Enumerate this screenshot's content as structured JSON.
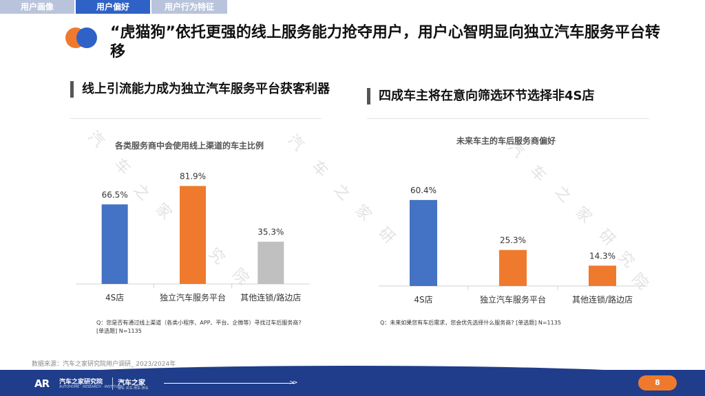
{
  "tabs": [
    {
      "label": "用户画像",
      "active": false
    },
    {
      "label": "用户偏好",
      "active": true
    },
    {
      "label": "用户行为特征",
      "active": false
    }
  ],
  "main_title": "“虎猫狗”依托更强的线上服务能力抢夺用户，用户心智明显向独立汽车服务平台转移",
  "left": {
    "heading": "线上引流能力成为独立汽车服务平台获客利器",
    "panel_title": "各类服务商中会使用线上渠道的车主比例",
    "note_line1": "Q：您是否有通过线上渠道（各类小程序、APP、平台、企微等）寻找过车后服务商?",
    "note_line2": "[单选题] N=1135"
  },
  "right": {
    "heading": "四成车主将在意向筛选环节选择非4S店",
    "panel_title": "未来车主的车后服务商偏好",
    "note_line1": "Q：未来如果您有车后需求，您会优先选择什么服务商?  [单选题] N=1135"
  },
  "chart_data": [
    {
      "type": "bar",
      "title": "各类服务商中会使用线上渠道的车主比例",
      "categories": [
        "4S店",
        "独立汽车服务平台",
        "其他连锁/路边店"
      ],
      "values": [
        66.5,
        81.9,
        35.3
      ],
      "labels": [
        "66.5%",
        "81.9%",
        "35.3%"
      ],
      "colors": [
        "#4472c4",
        "#ef7a2e",
        "#c0c0c0"
      ],
      "ylim": [
        0,
        100
      ],
      "grid": false
    },
    {
      "type": "bar",
      "title": "未来车主的车后服务商偏好",
      "categories": [
        "4S店",
        "独立汽车服务平台",
        "其他连锁/路边店"
      ],
      "values": [
        60.4,
        25.3,
        14.3
      ],
      "labels": [
        "60.4%",
        "25.3%",
        "14.3%"
      ],
      "colors": [
        "#4472c4",
        "#ef7a2e",
        "#ef7a2e"
      ],
      "ylim": [
        0,
        70
      ],
      "grid": false
    }
  ],
  "source": "数据来源：汽车之家研究院用户调研_ 2023/2024年",
  "footer": {
    "logo_mark": "AR",
    "logo_name": "汽车之家研究院",
    "logo_sub": "AUTOHOME · RESEARCH · INSTITUTE",
    "brand": "汽车之家",
    "brand_sub": "看车·买车·用车·换车",
    "page": "8"
  },
  "watermark": [
    "汽",
    "车",
    "之",
    "家",
    "研",
    "究",
    "院"
  ]
}
